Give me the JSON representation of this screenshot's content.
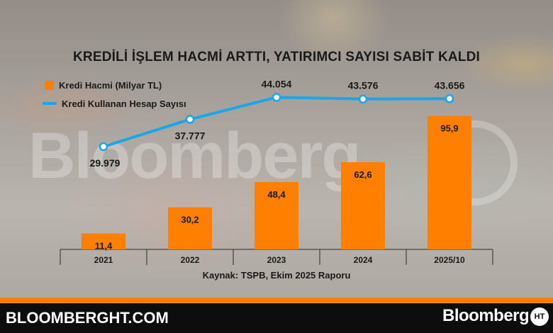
{
  "watermark_text": "Bloomberg",
  "chart_data": {
    "type": "bar",
    "title": "KREDİLİ İŞLEM HACMİ ARTTI, YATIRIMCI SAYISI SABİT KALDI",
    "categories": [
      "2021",
      "2022",
      "2023",
      "2024",
      "2025/10"
    ],
    "series": [
      {
        "name": "Kredi Hacmi (Milyar TL)",
        "type": "bar",
        "values": [
          11.4,
          30.2,
          48.4,
          62.6,
          95.9
        ],
        "labels": [
          "11,4",
          "30,2",
          "48,4",
          "62,6",
          "95,9"
        ],
        "color": "#ff8000"
      },
      {
        "name": "Kredi Kullanan Hesap Sayısı",
        "type": "line",
        "values": [
          29979,
          37777,
          44054,
          43576,
          43656
        ],
        "labels": [
          "29.979",
          "37.777",
          "44.054",
          "43.576",
          "43.656"
        ],
        "color": "#1aa7e8"
      }
    ],
    "legend_position": "top-left",
    "grid": false,
    "source": "Kaynak: TSPB, Ekim 2025 Raporu"
  },
  "footer": {
    "site": "BLOOMBERGHT.COM",
    "brand": "Bloomberg",
    "logo_text": "HT"
  },
  "colors": {
    "accent": "#ff8000",
    "line": "#1aa7e8",
    "footer_bg": "#0d0d0d"
  }
}
